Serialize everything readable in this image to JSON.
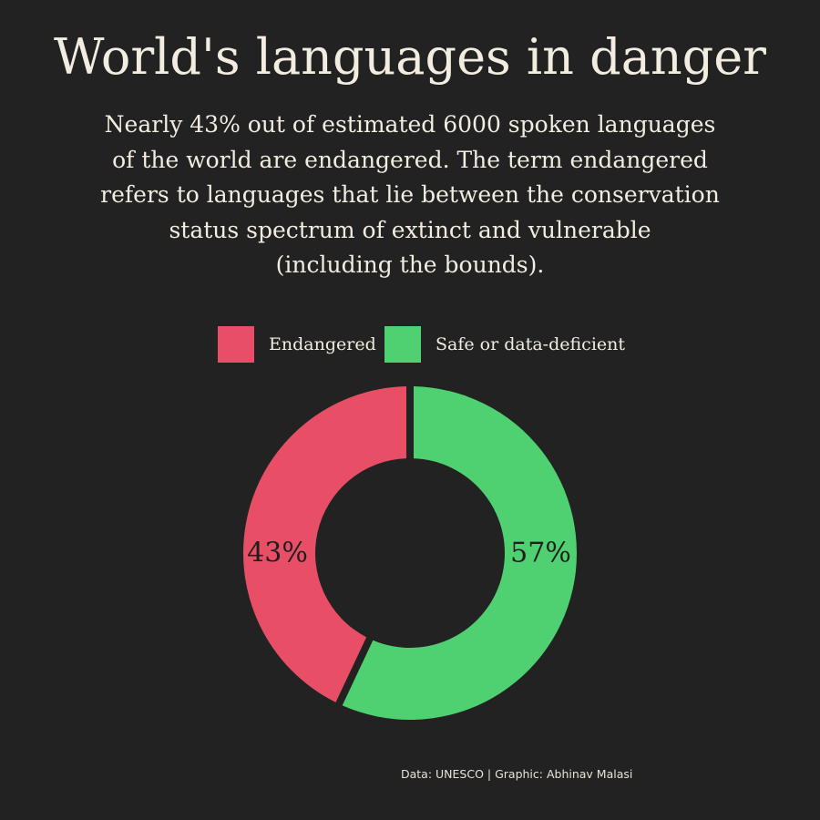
{
  "title": "World's languages in danger",
  "subtitle_lines": [
    "Nearly 43% out of estimated 6000 spoken languages",
    "of the world are endangered. The term endangered",
    "refers to languages that lie between the conservation",
    "status spectrum of extinct and vulnerable",
    "(including the bounds)."
  ],
  "credit": "Data: UNESCO | Graphic: Abhinav Malasi",
  "chart_data": {
    "type": "pie",
    "style": "donut",
    "legend_position": "top",
    "slices": [
      {
        "label": "Endangered",
        "value": 43,
        "display": "43%",
        "color": "#e84f66"
      },
      {
        "label": "Safe or data-deficient",
        "value": 57,
        "display": "57%",
        "color": "#4fd172"
      }
    ]
  }
}
